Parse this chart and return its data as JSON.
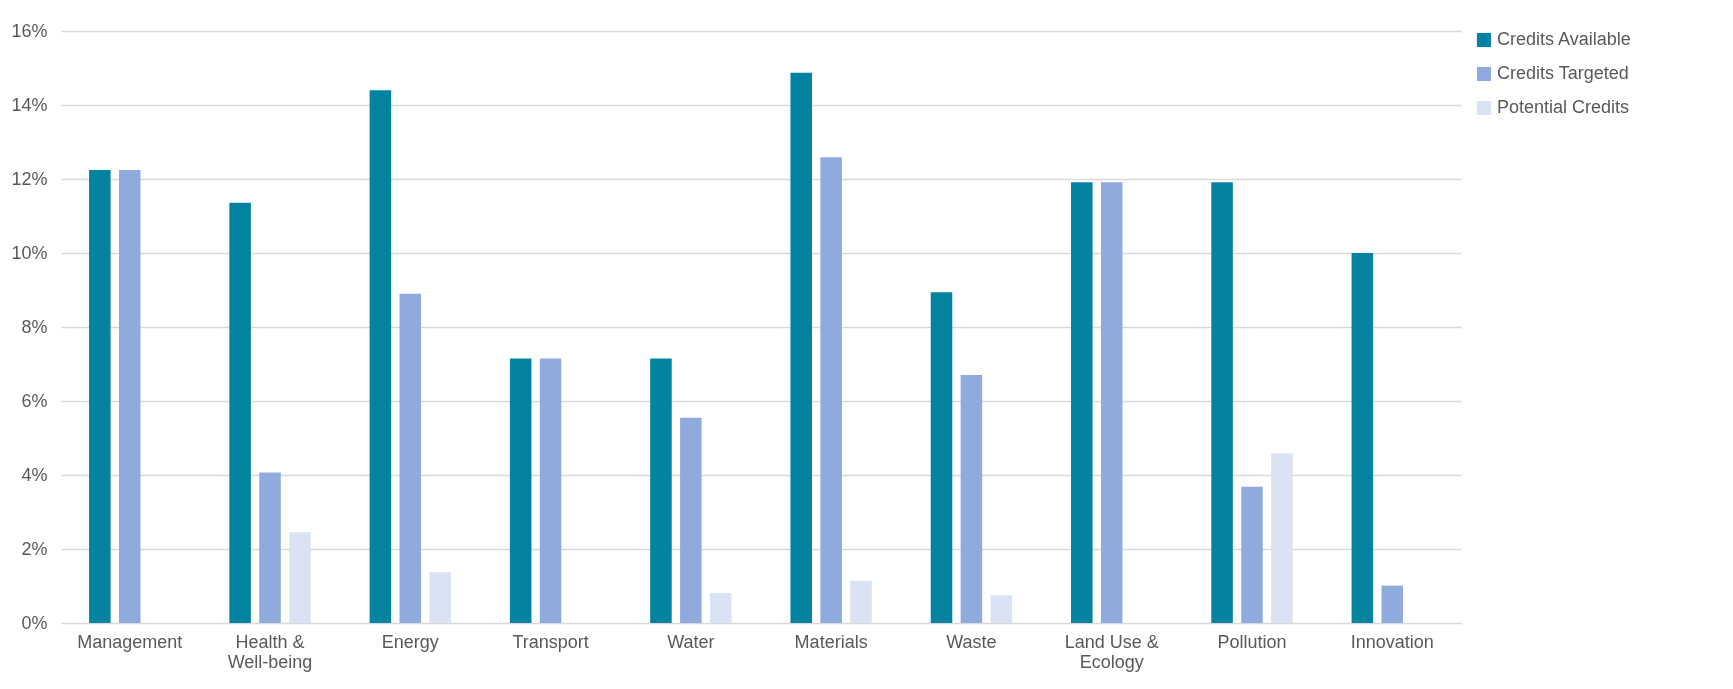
{
  "chart_data": {
    "type": "bar",
    "categories": [
      "Management",
      "Health & Well-being",
      "Energy",
      "Transport",
      "Water",
      "Materials",
      "Waste",
      "Land Use & Ecology",
      "Pollution",
      "Innovation"
    ],
    "series": [
      {
        "name": "Credits Available",
        "color": "#0383a0",
        "values": [
          12.24,
          11.36,
          14.4,
          7.15,
          7.15,
          14.87,
          8.94,
          11.91,
          11.91,
          10.0
        ]
      },
      {
        "name": "Credits Targeted",
        "color": "#8faadc",
        "values": [
          12.24,
          4.07,
          8.9,
          7.15,
          5.55,
          12.59,
          6.7,
          11.91,
          3.68,
          1.01
        ]
      },
      {
        "name": "Potential Credits",
        "color": "#dae3f3",
        "values": [
          null,
          2.45,
          1.37,
          null,
          0.81,
          1.14,
          0.75,
          null,
          4.59,
          null
        ]
      }
    ],
    "ylim": [
      0,
      16
    ],
    "yticks": [
      {
        "value": 0,
        "label": "0%"
      },
      {
        "value": 2,
        "label": "2%"
      },
      {
        "value": 4,
        "label": "4%"
      },
      {
        "value": 6,
        "label": "6%"
      },
      {
        "value": 8,
        "label": "8%"
      },
      {
        "value": 10,
        "label": "10%"
      },
      {
        "value": 12,
        "label": "12%"
      },
      {
        "value": 14,
        "label": "14%"
      },
      {
        "value": 16,
        "label": "16%"
      }
    ],
    "grid": "y",
    "legend": "right"
  }
}
